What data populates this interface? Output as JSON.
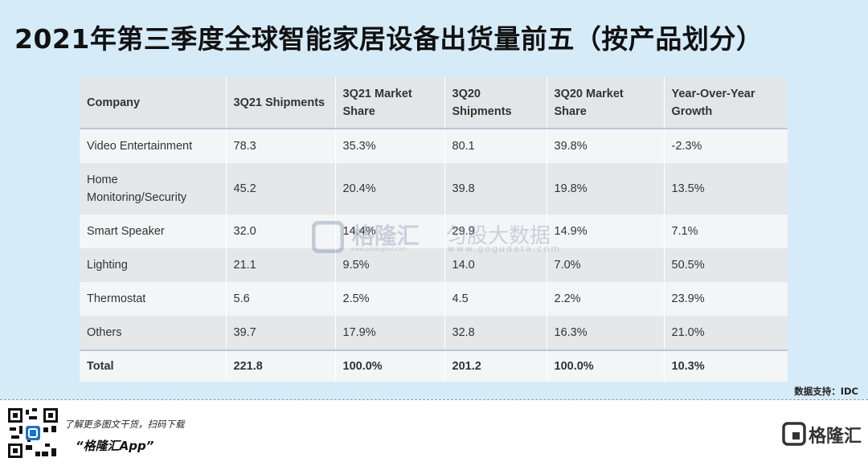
{
  "header": {
    "title": "2021年第三季度全球智能家居设备出货量前五（按产品划分）"
  },
  "table": {
    "columns": [
      "Company",
      "3Q21 Shipments",
      "3Q21 Market Share",
      "3Q20 Shipments",
      "3Q20 Market Share",
      "Year-Over-Year Growth"
    ],
    "rows": [
      [
        "Video Entertainment",
        "78.3",
        "35.3%",
        "80.1",
        "39.8%",
        "-2.3%"
      ],
      [
        "Home Monitoring/Security",
        "45.2",
        "20.4%",
        "39.8",
        "19.8%",
        "13.5%"
      ],
      [
        "Smart Speaker",
        "32.0",
        "14.4%",
        "29.9",
        "14.9%",
        "7.1%"
      ],
      [
        "Lighting",
        "21.1",
        "9.5%",
        "14.0",
        "7.0%",
        "50.5%"
      ],
      [
        "Thermostat",
        "5.6",
        "2.5%",
        "4.5",
        "2.2%",
        "23.9%"
      ],
      [
        "Others",
        "39.7",
        "17.9%",
        "32.8",
        "16.3%",
        "21.0%"
      ],
      [
        "Total",
        "221.8",
        "100.0%",
        "201.2",
        "100.0%",
        "10.3%"
      ]
    ]
  },
  "source": "数据支持：IDC",
  "watermark": {
    "brand": "格隆汇",
    "brand_url": "www.gelonghui.com",
    "data_brand": "匀股大数据",
    "data_url": "www.gogudata.com"
  },
  "footer": {
    "prompt": "了解更多图文干货，扫码下载",
    "app": "“格隆汇App”",
    "logo": "格隆汇"
  }
}
